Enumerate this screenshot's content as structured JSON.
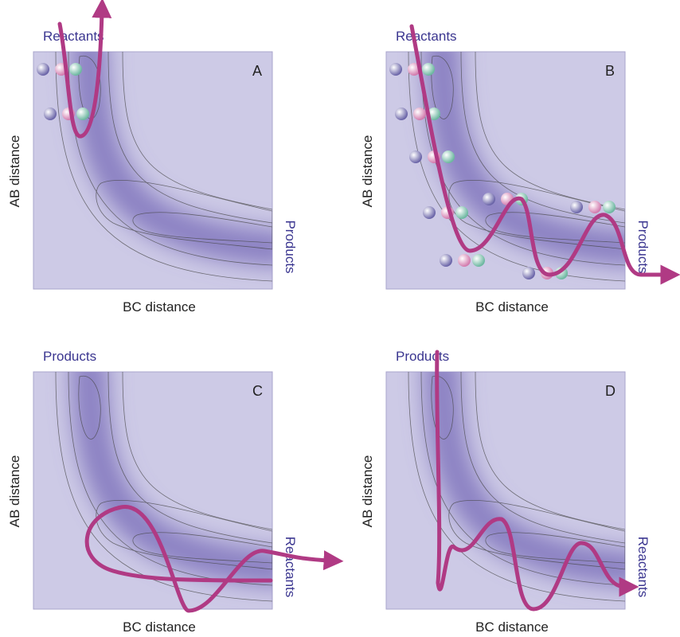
{
  "panels": [
    {
      "letter": "A",
      "top_label": "Reactants",
      "side_label": "Products",
      "y_label": "AB distance",
      "x_label": "BC distance"
    },
    {
      "letter": "B",
      "top_label": "Reactants",
      "side_label": "Products",
      "y_label": "AB distance",
      "x_label": "BC distance"
    },
    {
      "letter": "C",
      "top_label": "Products",
      "side_label": "Reactants",
      "y_label": "AB distance",
      "x_label": "BC distance"
    },
    {
      "letter": "D",
      "top_label": "Products",
      "side_label": "Reactants",
      "y_label": "AB distance",
      "x_label": "BC distance"
    }
  ]
}
